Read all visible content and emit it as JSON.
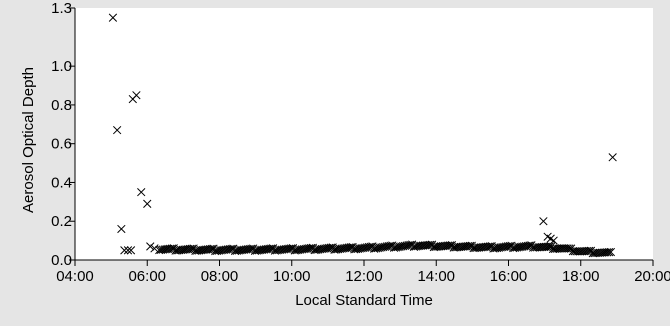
{
  "chart_data": {
    "type": "scatter",
    "xlabel": "Local Standard Time",
    "ylabel": "Aerosol Optical Depth",
    "xlim": [
      "04:00",
      "20:00"
    ],
    "ylim": [
      0.0,
      1.3
    ],
    "x_ticks": [
      "04:00",
      "06:00",
      "08:00",
      "10:00",
      "12:00",
      "14:00",
      "16:00",
      "18:00",
      "20:00"
    ],
    "y_ticks": [
      "0.0",
      "0.2",
      "0.4",
      "0.6",
      "0.8",
      "1.0",
      "1.3"
    ],
    "grid": false,
    "marker": "x",
    "colors": {
      "background": "#e5e5e5",
      "plot_area": "#ffffff",
      "marker": "#000000",
      "axis": "#000000"
    },
    "points": [
      {
        "x": "05:03",
        "y": 1.25
      },
      {
        "x": "05:10",
        "y": 0.67
      },
      {
        "x": "05:17",
        "y": 0.16
      },
      {
        "x": "05:22",
        "y": 0.05
      },
      {
        "x": "05:28",
        "y": 0.05
      },
      {
        "x": "05:33",
        "y": 0.05
      },
      {
        "x": "05:36",
        "y": 0.83
      },
      {
        "x": "05:42",
        "y": 0.85
      },
      {
        "x": "05:50",
        "y": 0.35
      },
      {
        "x": "06:00",
        "y": 0.29
      },
      {
        "x": "06:05",
        "y": 0.07
      },
      {
        "x": "06:12",
        "y": 0.06
      },
      {
        "x": "16:58",
        "y": 0.2
      },
      {
        "x": "17:05",
        "y": 0.12
      },
      {
        "x": "17:10",
        "y": 0.11
      },
      {
        "x": "17:15",
        "y": 0.1
      },
      {
        "x": "18:53",
        "y": 0.53
      }
    ],
    "baseline_series": {
      "description_values": [
        {
          "x": "06:20",
          "y": 0.055
        },
        {
          "x": "08:00",
          "y": 0.052
        },
        {
          "x": "10:00",
          "y": 0.055
        },
        {
          "x": "12:00",
          "y": 0.062
        },
        {
          "x": "13:30",
          "y": 0.075
        },
        {
          "x": "14:30",
          "y": 0.07
        },
        {
          "x": "15:30",
          "y": 0.065
        },
        {
          "x": "16:40",
          "y": 0.07
        },
        {
          "x": "17:30",
          "y": 0.06
        },
        {
          "x": "18:00",
          "y": 0.045
        },
        {
          "x": "18:50",
          "y": 0.035
        }
      ],
      "interval_minutes": 3
    }
  }
}
